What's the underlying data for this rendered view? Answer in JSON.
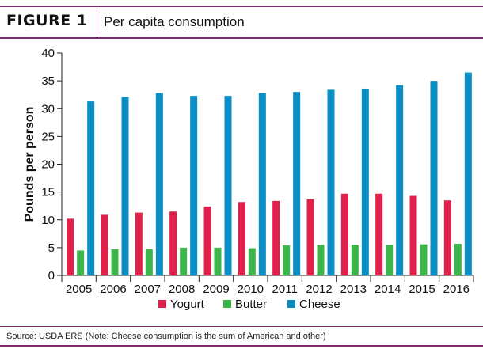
{
  "header": {
    "figure_label": "FIGURE 1",
    "title": "Per capita consumption"
  },
  "source": "Source: USDA ERS (Note: Cheese consumption is the sum of American and other)",
  "chart_data": {
    "type": "bar",
    "title": "Per capita consumption",
    "xlabel": "",
    "ylabel": "Pounds per person",
    "ylim": [
      0,
      40
    ],
    "yticks": [
      0,
      5,
      10,
      15,
      20,
      25,
      30,
      35,
      40
    ],
    "grid": false,
    "legend_position": "bottom",
    "categories": [
      "2005",
      "2006",
      "2007",
      "2008",
      "2009",
      "2010",
      "2011",
      "2012",
      "2013",
      "2014",
      "2015",
      "2016"
    ],
    "series": [
      {
        "name": "Yogurt",
        "color": "#e0214b",
        "values": [
          10.2,
          10.9,
          11.3,
          11.5,
          12.4,
          13.2,
          13.4,
          13.7,
          14.7,
          14.7,
          14.3,
          13.5
        ]
      },
      {
        "name": "Butter",
        "color": "#3cb54a",
        "values": [
          4.5,
          4.7,
          4.7,
          5.0,
          5.0,
          4.9,
          5.4,
          5.5,
          5.5,
          5.5,
          5.6,
          5.7
        ]
      },
      {
        "name": "Cheese",
        "color": "#0a8ec4",
        "values": [
          31.3,
          32.1,
          32.8,
          32.3,
          32.3,
          32.8,
          33.0,
          33.4,
          33.6,
          34.2,
          35.0,
          36.5
        ]
      }
    ]
  }
}
